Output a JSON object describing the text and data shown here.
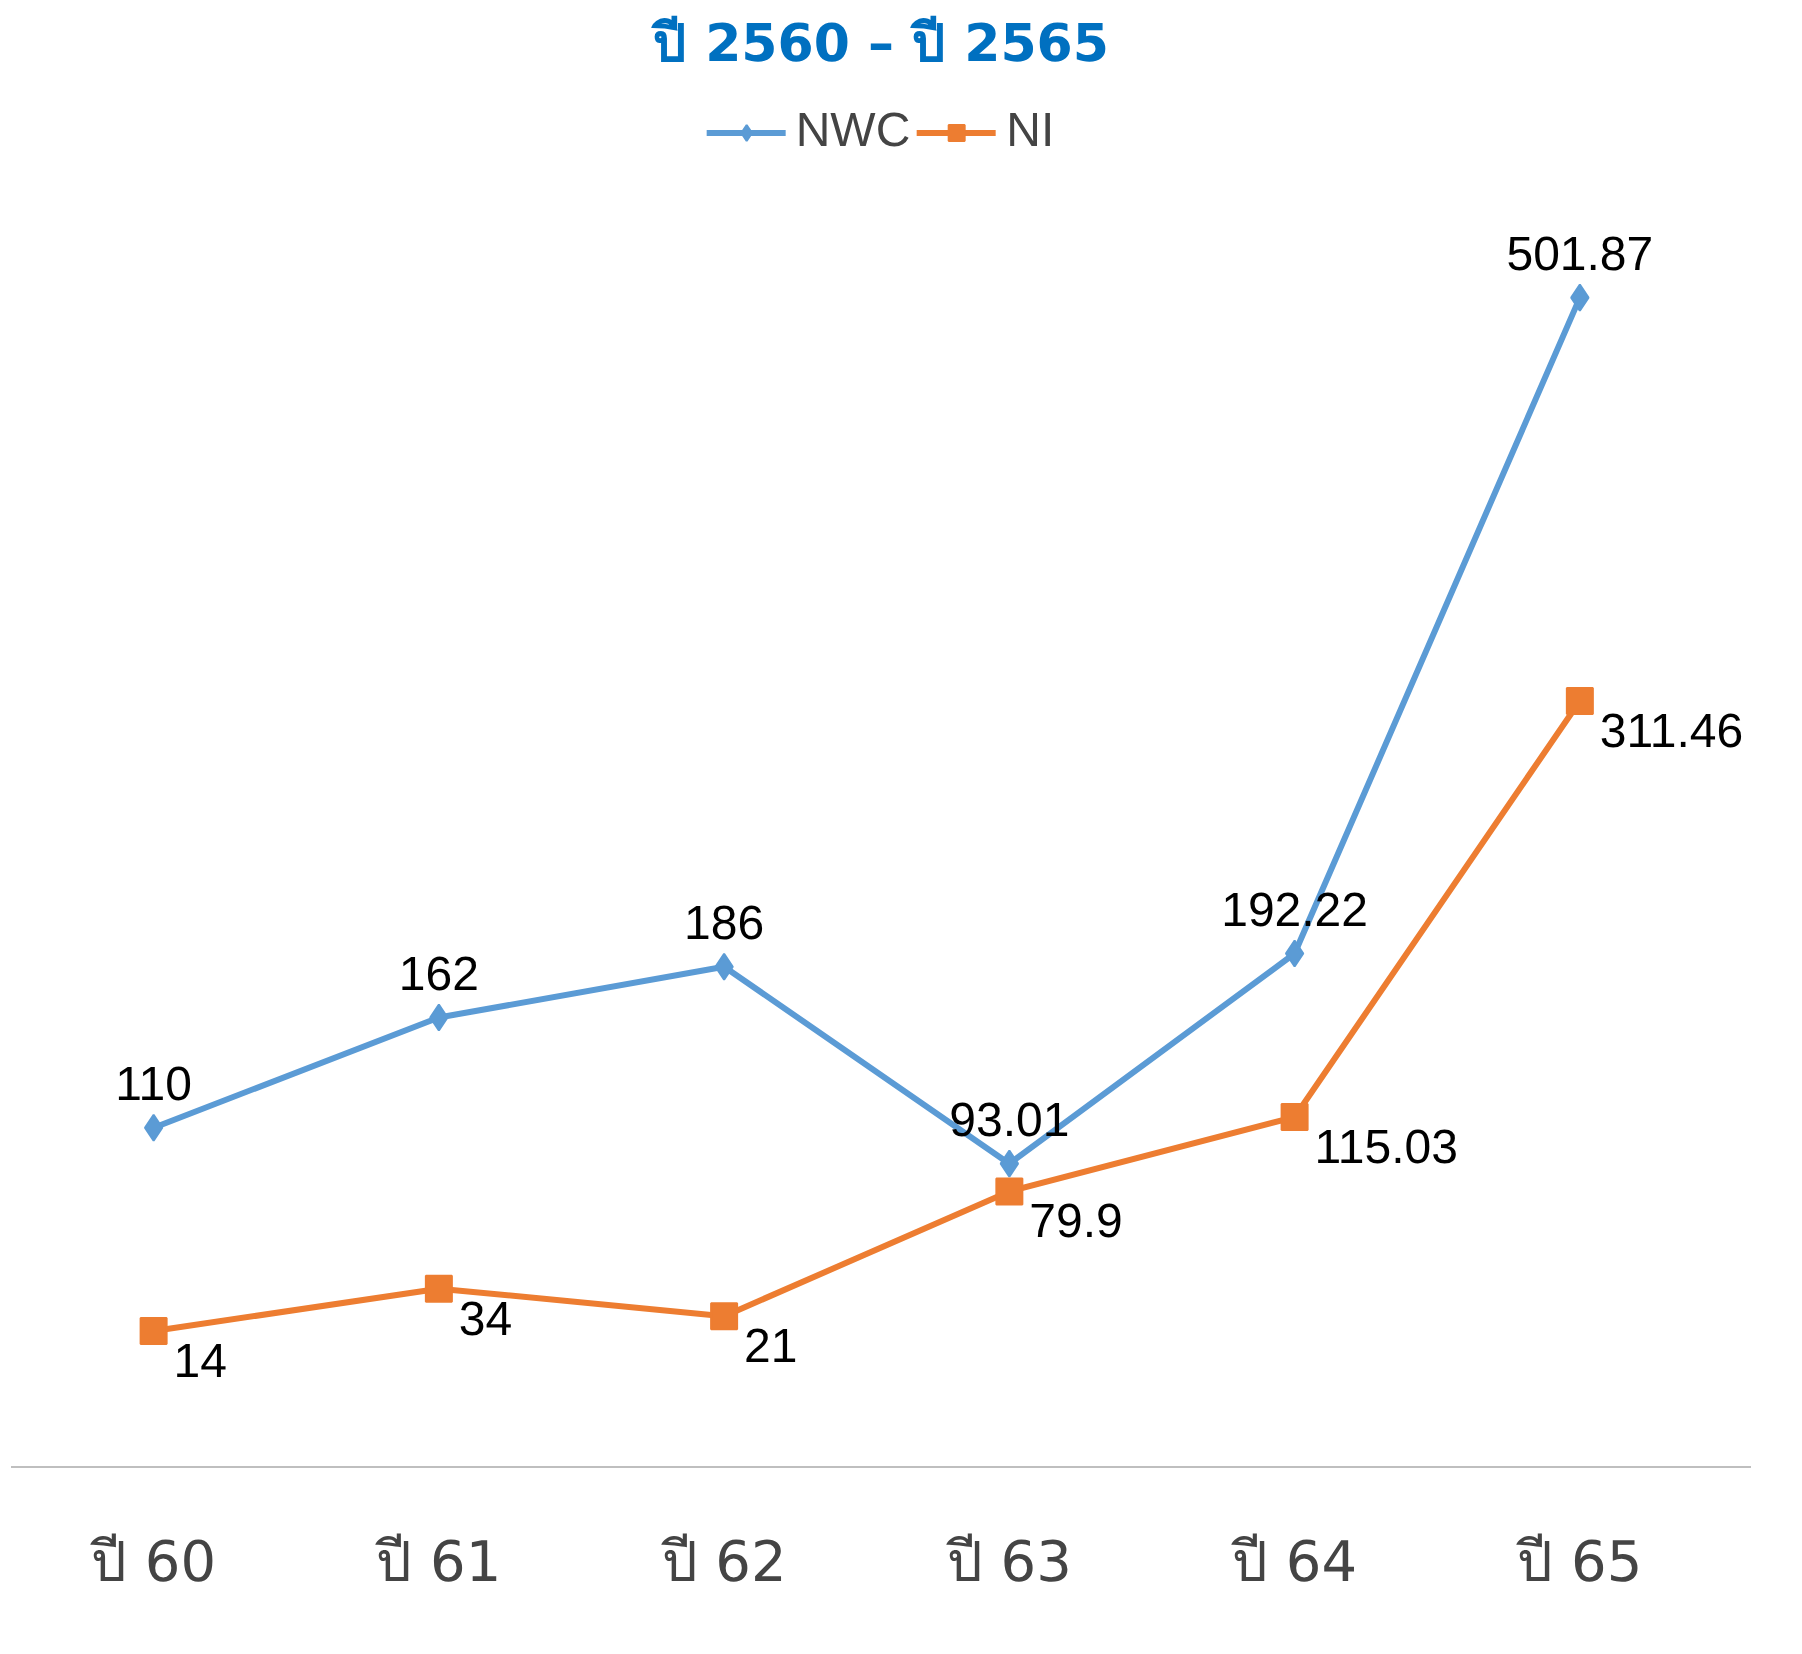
{
  "chart_data": {
    "type": "line",
    "title": "ปี 2560 – ปี 2565",
    "categories": [
      "ปี 60",
      "ปี 61",
      "ปี 62",
      "ปี 63",
      "ปี 64",
      "ปี 65"
    ],
    "series": [
      {
        "name": "NWC",
        "color": "#5b9bd5",
        "marker": "diamond",
        "values": [
          110,
          162,
          186,
          93.01,
          192.22,
          501.87
        ]
      },
      {
        "name": "NI",
        "color": "#ed7d31",
        "marker": "square",
        "values": [
          14,
          34,
          21,
          79.9,
          115.03,
          311.46
        ]
      }
    ],
    "data_labels": true,
    "legend": "top",
    "grid": false,
    "tick_labels": "x"
  }
}
